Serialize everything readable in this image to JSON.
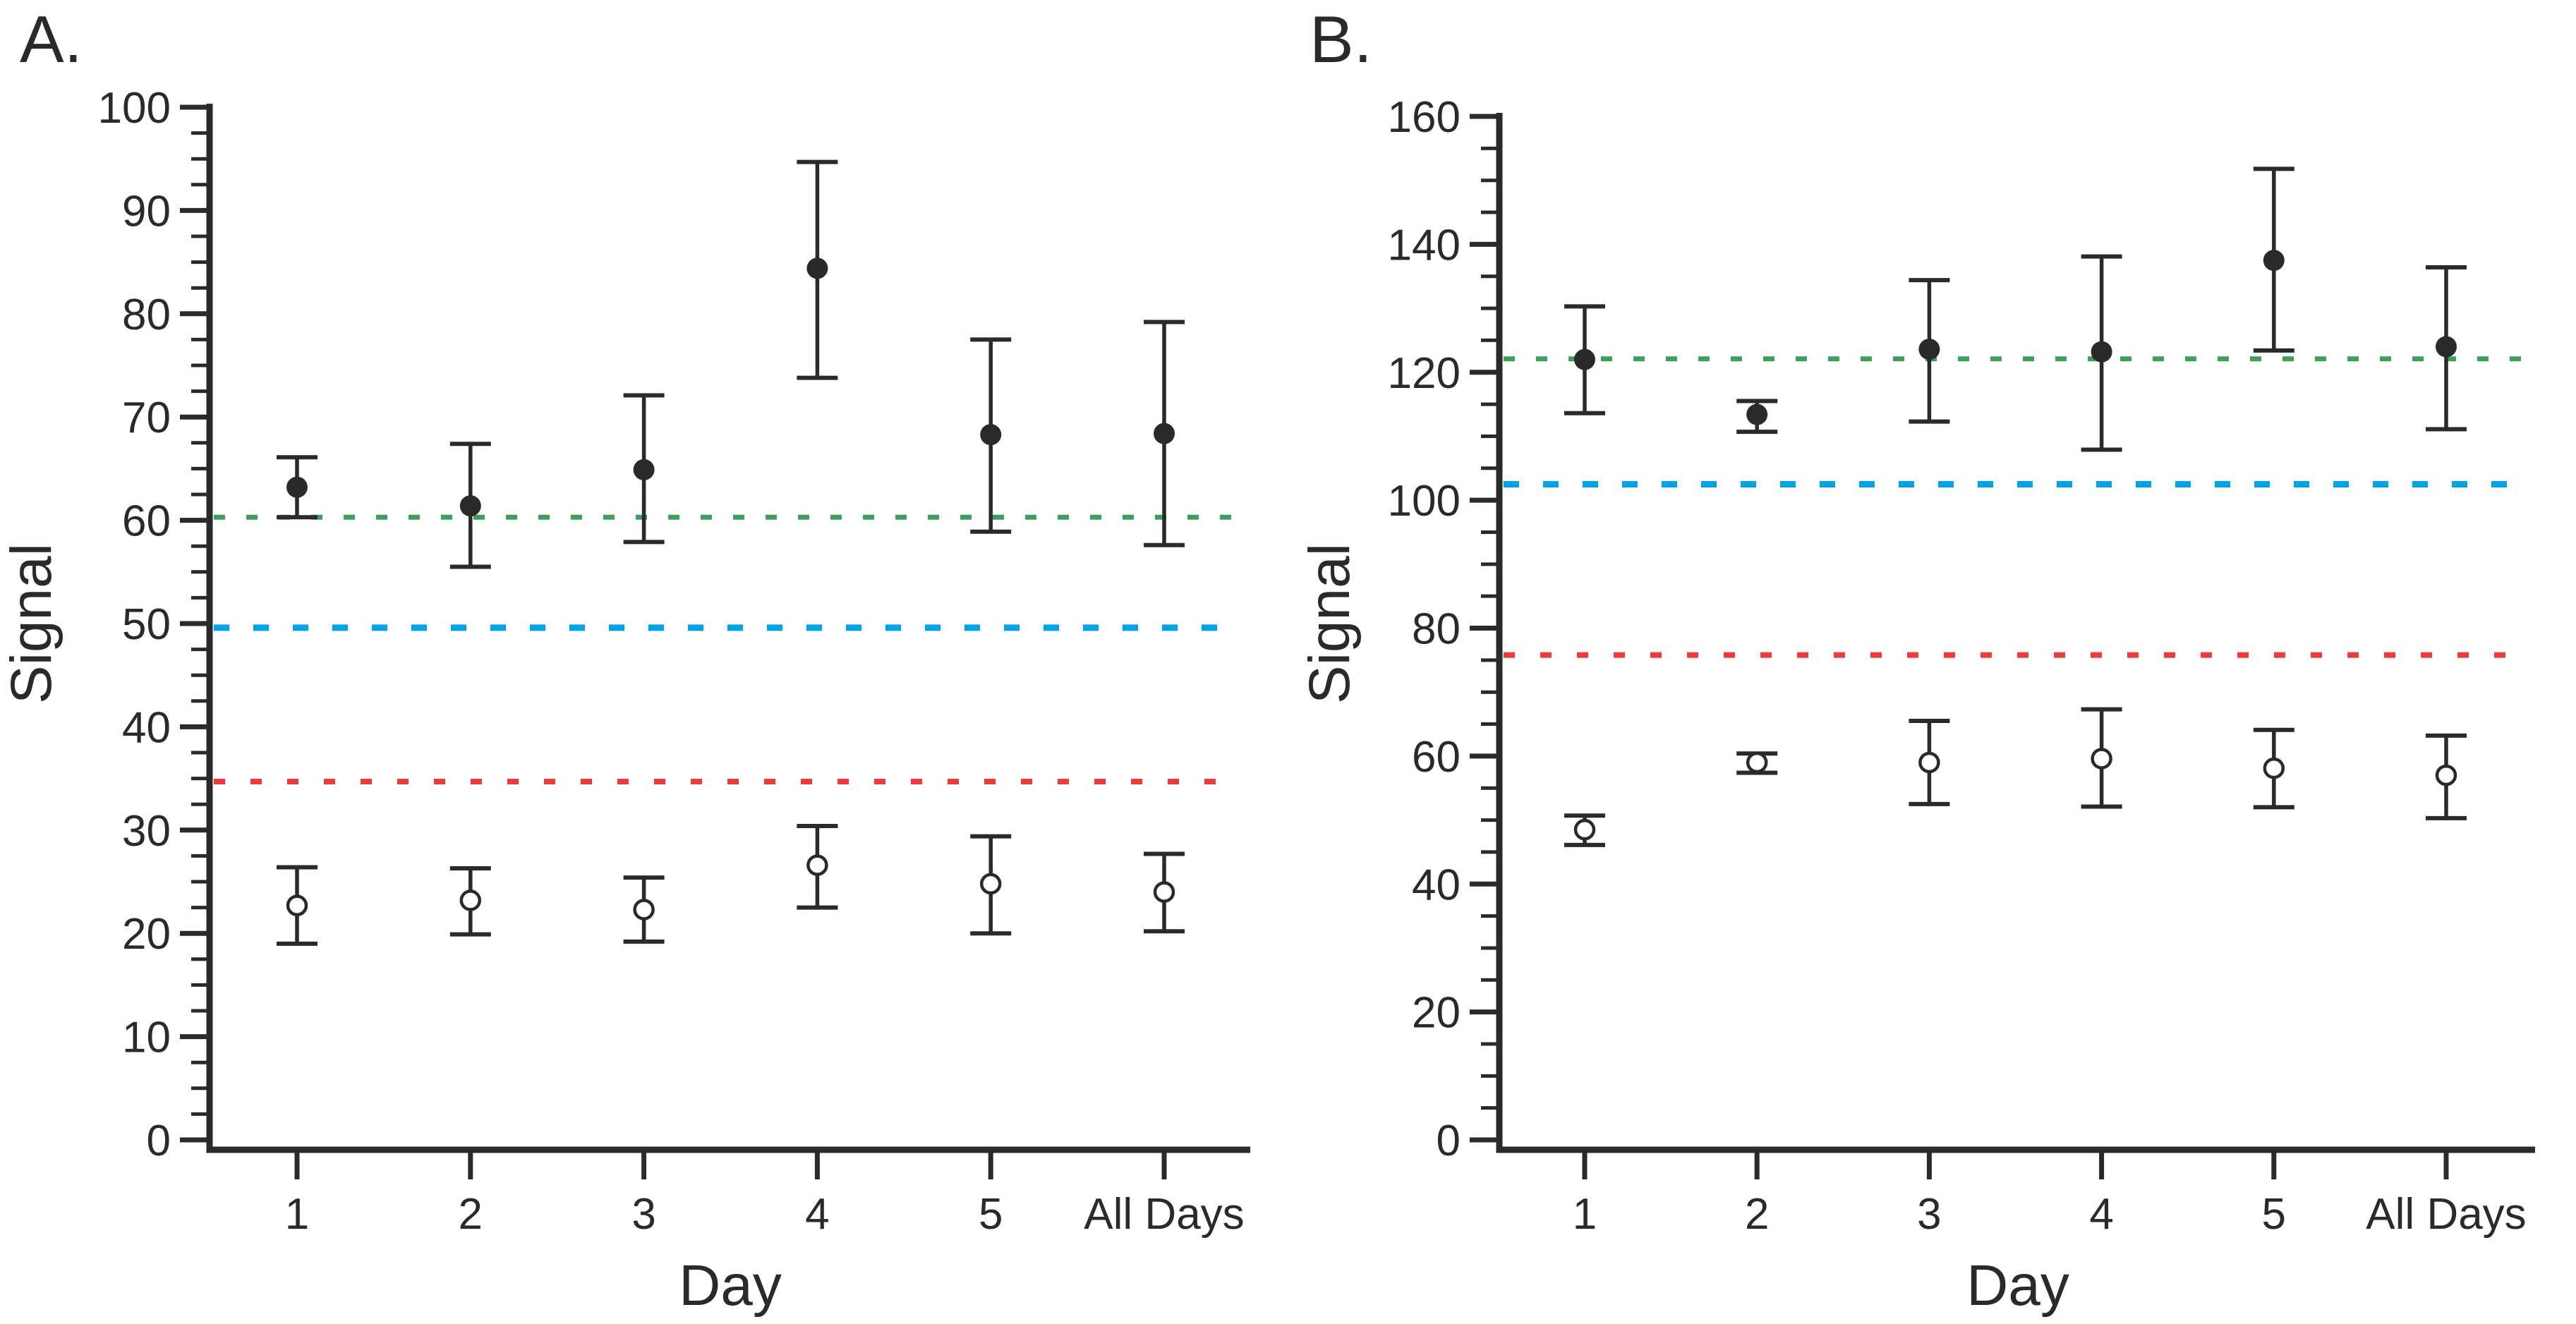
{
  "figure": {
    "background": "#ffffff",
    "text_color": "#2a2a2a",
    "axis_color": "#2a2a2a"
  },
  "chart_data": [
    {
      "type": "scatter",
      "panel_label": "A.",
      "xlabel": "Day",
      "ylabel": "Signal",
      "categories": [
        "1",
        "2",
        "3",
        "4",
        "5",
        "All Days"
      ],
      "ylim": [
        0,
        100
      ],
      "ytick_major_step": 10,
      "ytick_minor_step": 2.5,
      "grid": "off",
      "legend": "none",
      "series": [
        {
          "name": "filled-circles",
          "marker": "closed-circle",
          "means": [
            63.2,
            61.4,
            64.9,
            84.4,
            68.3,
            68.4
          ],
          "upper": [
            66.1,
            67.4,
            72.1,
            94.7,
            77.5,
            79.2
          ],
          "lower": [
            60.3,
            55.5,
            57.9,
            73.8,
            58.9,
            57.6
          ]
        },
        {
          "name": "open-circles",
          "marker": "open-circle",
          "means": [
            22.7,
            23.2,
            22.3,
            26.6,
            24.8,
            24.0
          ],
          "upper": [
            26.4,
            26.3,
            25.4,
            30.4,
            29.4,
            27.7
          ],
          "lower": [
            19.0,
            19.9,
            19.2,
            22.5,
            20.0,
            20.2
          ]
        }
      ],
      "ref_lines": [
        {
          "name": "green-dashed-line",
          "color": "#3ca05a",
          "value": 60.3
        },
        {
          "name": "blue-dashed-line",
          "color": "#00a2e8",
          "value": 49.6
        },
        {
          "name": "red-dashed-line",
          "color": "#ee3a3a",
          "value": 34.7
        }
      ]
    },
    {
      "type": "scatter",
      "panel_label": "B.",
      "xlabel": "Day",
      "ylabel": "Signal",
      "categories": [
        "1",
        "2",
        "3",
        "4",
        "5",
        "All Days"
      ],
      "ylim": [
        0,
        160
      ],
      "ytick_major_step": 20,
      "ytick_minor_step": 5,
      "grid": "off",
      "legend": "none",
      "series": [
        {
          "name": "filled-circles",
          "marker": "closed-circle",
          "means": [
            122.0,
            113.4,
            123.6,
            123.2,
            137.5,
            124.0
          ],
          "upper": [
            130.3,
            115.5,
            134.4,
            138.1,
            151.8,
            136.4
          ],
          "lower": [
            113.6,
            110.7,
            112.3,
            107.9,
            123.4,
            111.1
          ]
        },
        {
          "name": "open-circles",
          "marker": "open-circle",
          "means": [
            48.5,
            59.0,
            59.0,
            59.6,
            58.1,
            57.0
          ],
          "upper": [
            50.7,
            60.4,
            65.5,
            67.3,
            64.1,
            63.2
          ],
          "lower": [
            46.1,
            57.4,
            52.5,
            52.1,
            52.0,
            50.3
          ]
        }
      ],
      "ref_lines": [
        {
          "name": "green-dashed-line",
          "color": "#3ca05a",
          "value": 122.1
        },
        {
          "name": "blue-dashed-line",
          "color": "#00a2e8",
          "value": 102.5
        },
        {
          "name": "red-dashed-line",
          "color": "#ee3a3a",
          "value": 75.8
        }
      ]
    }
  ]
}
